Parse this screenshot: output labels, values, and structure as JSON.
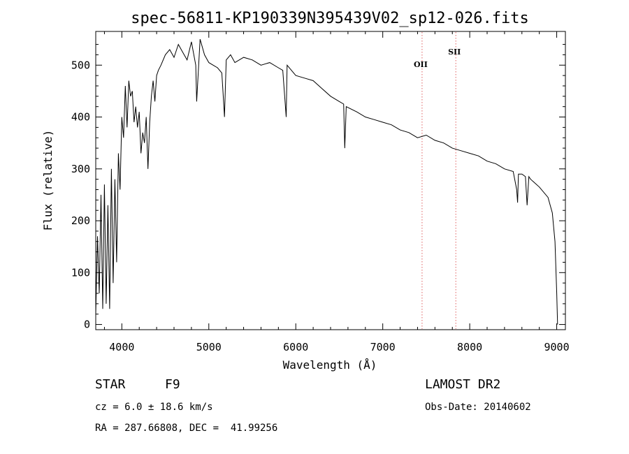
{
  "chart_data": {
    "type": "line",
    "title": "spec-56811-KP190339N395439V02_sp12-026.fits",
    "xlabel": "Wavelength (Å)",
    "ylabel": "Flux (relative)",
    "xlim": [
      3700,
      9100
    ],
    "ylim": [
      -10,
      565
    ],
    "xticks": [
      4000,
      5000,
      6000,
      7000,
      8000,
      9000
    ],
    "xtick_labels": [
      "4000",
      "5000",
      "6000",
      "7000",
      "8000",
      "9000"
    ],
    "yticks": [
      0,
      100,
      200,
      300,
      400,
      500
    ],
    "ytick_labels": [
      "0",
      "100",
      "200",
      "300",
      "400",
      "500"
    ],
    "series": [
      {
        "x": [
          3700,
          3720,
          3740,
          3760,
          3780,
          3800,
          3820,
          3840,
          3860,
          3880,
          3900,
          3920,
          3940,
          3960,
          3980,
          4000,
          4020,
          4040,
          4060,
          4080,
          4100,
          4120,
          4140,
          4160,
          4180,
          4200,
          4220,
          4240,
          4260,
          4280,
          4300,
          4320,
          4340,
          4360,
          4380,
          4400,
          4420,
          4450,
          4500,
          4550,
          4600,
          4650,
          4700,
          4750,
          4800,
          4850,
          4860,
          4900,
          4950,
          5000,
          5050,
          5100,
          5150,
          5170,
          5180,
          5200,
          5250,
          5300,
          5400,
          5500,
          5600,
          5700,
          5800,
          5850,
          5890,
          5900,
          6000,
          6100,
          6200,
          6300,
          6400,
          6500,
          6550,
          6563,
          6580,
          6700,
          6800,
          6900,
          7000,
          7100,
          7200,
          7300,
          7400,
          7500,
          7600,
          7700,
          7800,
          7900,
          8000,
          8100,
          8200,
          8300,
          8400,
          8500,
          8540,
          8550,
          8560,
          8600,
          8640,
          8660,
          8680,
          8700,
          8800,
          8900,
          8950,
          8980,
          9000,
          9010
        ],
        "values": [
          20,
          170,
          60,
          250,
          30,
          270,
          40,
          230,
          30,
          300,
          80,
          280,
          120,
          330,
          260,
          400,
          360,
          460,
          380,
          470,
          440,
          450,
          390,
          420,
          380,
          410,
          330,
          370,
          350,
          400,
          300,
          390,
          440,
          470,
          430,
          480,
          490,
          500,
          520,
          530,
          515,
          540,
          525,
          510,
          545,
          500,
          430,
          550,
          520,
          505,
          500,
          495,
          485,
          430,
          400,
          510,
          520,
          505,
          515,
          510,
          500,
          505,
          495,
          490,
          400,
          500,
          480,
          475,
          470,
          455,
          440,
          430,
          425,
          340,
          420,
          410,
          400,
          395,
          390,
          385,
          375,
          370,
          360,
          365,
          355,
          350,
          340,
          335,
          330,
          325,
          315,
          310,
          300,
          295,
          260,
          235,
          290,
          290,
          285,
          230,
          285,
          280,
          265,
          245,
          215,
          160,
          60,
          0
        ]
      }
    ],
    "lines": [
      {
        "label": "OII",
        "x": 7452
      },
      {
        "label": "SII",
        "x": 7840
      }
    ],
    "line_color": "#e06060",
    "grid": false
  },
  "info": {
    "object_class": "STAR",
    "subclass": "F9",
    "survey": "LAMOST DR2",
    "cz": "cz = 6.0 ± 18.6 km/s",
    "obs_date": "Obs-Date: 20140602",
    "coords": "RA = 287.66808, DEC =  41.99256"
  }
}
